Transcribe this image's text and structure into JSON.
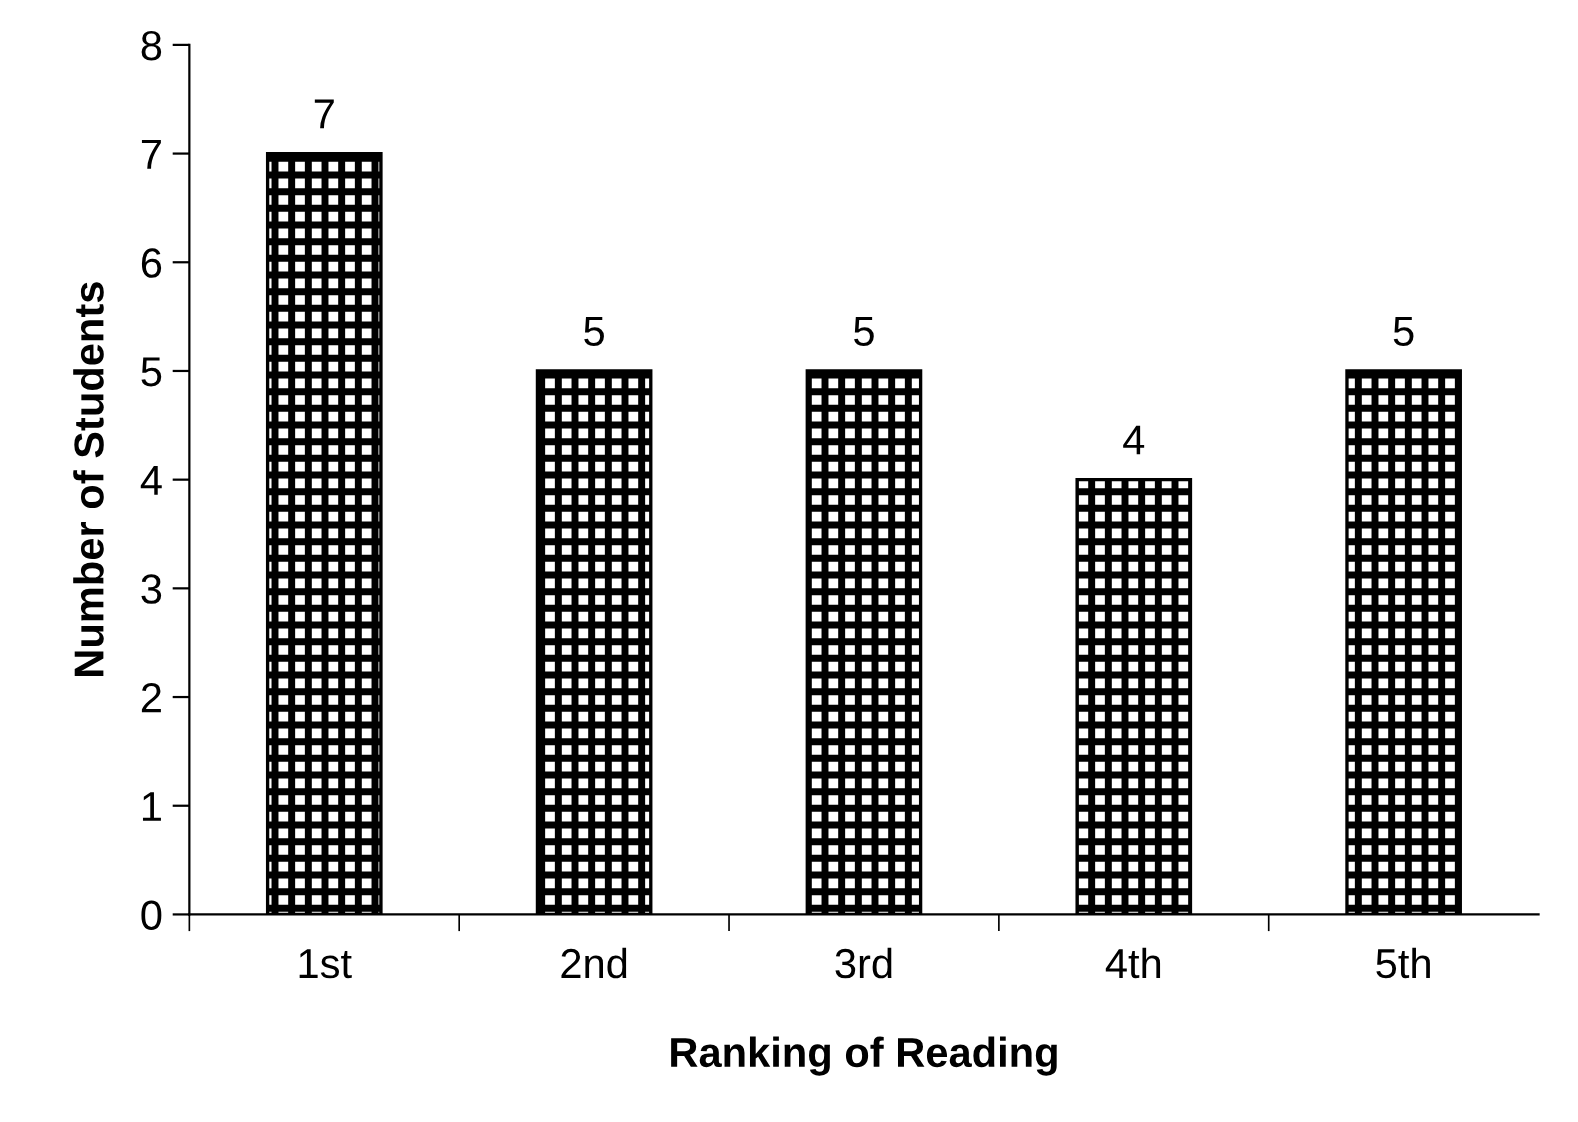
{
  "chart_data": {
    "type": "bar",
    "xlabel": "Ranking of Reading",
    "ylabel": "Number of Students",
    "categories": [
      "1st",
      "2nd",
      "3rd",
      "4th",
      "5th"
    ],
    "values": [
      7,
      5,
      5,
      4,
      5
    ],
    "color": "#000000",
    "ylim": [
      0,
      8
    ],
    "yticks": [
      0,
      1,
      2,
      3,
      4,
      5,
      6,
      7,
      8
    ],
    "data_labels": true,
    "grid": false,
    "legend": false
  }
}
